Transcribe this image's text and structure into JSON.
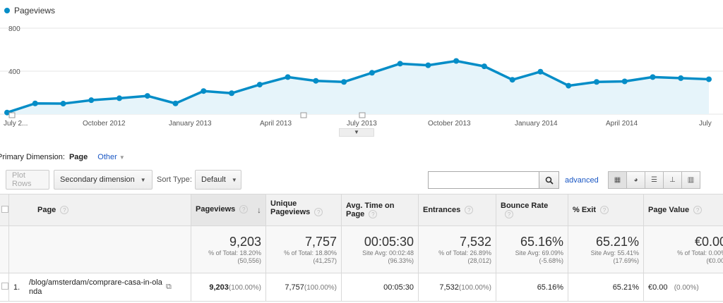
{
  "legend": {
    "label": "Pageviews",
    "color": "#058dc7"
  },
  "chart_data": {
    "type": "area",
    "series": [
      {
        "name": "Pageviews",
        "values": [
          15,
          100,
          98,
          130,
          148,
          170,
          100,
          215,
          195,
          275,
          345,
          310,
          300,
          385,
          470,
          455,
          495,
          445,
          320,
          395,
          265,
          300,
          305,
          345,
          335,
          325
        ]
      }
    ],
    "y_ticks": [
      "800",
      "400"
    ],
    "ylim": [
      0,
      800
    ],
    "x_labels": [
      "July 2...",
      "October 2012",
      "January 2013",
      "April 2013",
      "July 2013",
      "October 2013",
      "January 2014",
      "April 2014",
      "July"
    ]
  },
  "primary_dimension": {
    "label": "Primary Dimension:",
    "value": "Page",
    "other": "Other"
  },
  "toolbar": {
    "plot_rows": "Plot Rows",
    "secondary_dimension": "Secondary dimension",
    "sort_type_label": "Sort Type:",
    "sort_type_value": "Default",
    "search_value": "",
    "advanced": "advanced"
  },
  "view_icons": [
    "table-view-icon",
    "pie-view-icon",
    "performance-view-icon",
    "comparison-view-icon",
    "pivot-view-icon"
  ],
  "table": {
    "headers": {
      "page": "Page",
      "pageviews": "Pageviews",
      "unique": "Unique Pageviews",
      "avg_time": "Avg. Time on Page",
      "entrances": "Entrances",
      "bounce": "Bounce Rate",
      "exit": "% Exit",
      "value": "Page Value"
    },
    "totals": {
      "pageviews": {
        "value": "9,203",
        "l1": "% of Total: 18.20%",
        "l2": "(50,556)"
      },
      "unique": {
        "value": "7,757",
        "l1": "% of Total: 18.80%",
        "l2": "(41,257)"
      },
      "avg_time": {
        "value": "00:05:30",
        "l1": "Site Avg: 00:02:48",
        "l2": "(96.33%)"
      },
      "entrances": {
        "value": "7,532",
        "l1": "% of Total: 26.89%",
        "l2": "(28,012)"
      },
      "bounce": {
        "value": "65.16%",
        "l1": "Site Avg: 69.09%",
        "l2": "(-5.68%)"
      },
      "exit": {
        "value": "65.21%",
        "l1": "Site Avg: 55.41%",
        "l2": "(17.69%)"
      },
      "value": {
        "value": "€0.00",
        "l1": "% of Total: 0.00%",
        "l2": "(€0.00)"
      }
    },
    "rows": [
      {
        "rank": "1.",
        "page": "/blog/amsterdam/comprare-casa-in-olanda",
        "pageviews": "9,203",
        "pageviews_pct": "(100.00%)",
        "unique": "7,757",
        "unique_pct": "(100.00%)",
        "avg_time": "00:05:30",
        "entrances": "7,532",
        "entrances_pct": "(100.00%)",
        "bounce": "65.16%",
        "exit": "65.21%",
        "value": "€0.00",
        "value_pct": "(0.00%)"
      }
    ]
  }
}
